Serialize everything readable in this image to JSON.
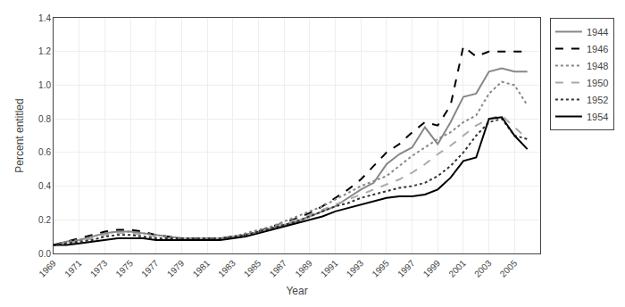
{
  "chart_data": {
    "type": "line",
    "xlabel": "Year",
    "ylabel": "Percent entitled",
    "x": [
      1969,
      1970,
      1971,
      1972,
      1973,
      1974,
      1975,
      1976,
      1977,
      1978,
      1979,
      1980,
      1981,
      1982,
      1983,
      1984,
      1985,
      1986,
      1987,
      1988,
      1989,
      1990,
      1991,
      1992,
      1993,
      1994,
      1995,
      1996,
      1997,
      1998,
      1999,
      2000,
      2001,
      2002,
      2003,
      2004,
      2005,
      2006
    ],
    "series": [
      {
        "name": "1944",
        "color": "#888888",
        "line_style": "solid",
        "values": [
          0.05,
          0.07,
          0.08,
          0.1,
          0.12,
          0.13,
          0.13,
          0.12,
          0.11,
          0.1,
          0.09,
          0.09,
          0.09,
          0.09,
          0.1,
          0.11,
          0.13,
          0.15,
          0.17,
          0.19,
          0.22,
          0.25,
          0.28,
          0.33,
          0.38,
          0.42,
          0.53,
          0.59,
          0.63,
          0.75,
          0.65,
          0.78,
          0.93,
          0.95,
          1.08,
          1.1,
          1.08,
          1.08
        ]
      },
      {
        "name": "1946",
        "color": "#000000",
        "line_style": "dashed",
        "values": [
          0.05,
          0.07,
          0.09,
          0.11,
          0.13,
          0.14,
          0.14,
          0.13,
          0.11,
          0.1,
          0.09,
          0.09,
          0.09,
          0.09,
          0.1,
          0.11,
          0.13,
          0.16,
          0.18,
          0.21,
          0.24,
          0.28,
          0.33,
          0.38,
          0.44,
          0.52,
          0.6,
          0.65,
          0.72,
          0.78,
          0.76,
          0.88,
          1.23,
          1.17,
          1.2,
          1.2,
          1.2,
          1.2
        ]
      },
      {
        "name": "1948",
        "color": "#888888",
        "line_style": "dotted",
        "values": [
          0.05,
          0.07,
          0.08,
          0.1,
          0.12,
          0.13,
          0.13,
          0.12,
          0.11,
          0.1,
          0.09,
          0.09,
          0.09,
          0.09,
          0.1,
          0.12,
          0.14,
          0.16,
          0.19,
          0.22,
          0.25,
          0.28,
          0.32,
          0.36,
          0.4,
          0.43,
          0.46,
          0.52,
          0.58,
          0.63,
          0.68,
          0.72,
          0.78,
          0.82,
          0.95,
          1.02,
          1.0,
          0.88
        ]
      },
      {
        "name": "1950",
        "color": "#aaaaaa",
        "line_style": "dashed",
        "values": [
          0.05,
          0.06,
          0.07,
          0.09,
          0.11,
          0.12,
          0.12,
          0.11,
          0.1,
          0.09,
          0.09,
          0.09,
          0.09,
          0.09,
          0.1,
          0.11,
          0.13,
          0.15,
          0.18,
          0.2,
          0.23,
          0.26,
          0.29,
          0.32,
          0.35,
          0.38,
          0.41,
          0.44,
          0.48,
          0.53,
          0.59,
          0.64,
          0.7,
          0.76,
          0.8,
          0.82,
          0.75,
          0.68
        ]
      },
      {
        "name": "1952",
        "color": "#333333",
        "line_style": "dotted",
        "values": [
          0.05,
          0.06,
          0.07,
          0.08,
          0.1,
          0.11,
          0.11,
          0.1,
          0.09,
          0.09,
          0.09,
          0.09,
          0.09,
          0.09,
          0.1,
          0.11,
          0.13,
          0.15,
          0.17,
          0.19,
          0.22,
          0.25,
          0.28,
          0.3,
          0.33,
          0.35,
          0.37,
          0.39,
          0.4,
          0.42,
          0.46,
          0.52,
          0.6,
          0.7,
          0.78,
          0.8,
          0.7,
          0.68
        ]
      },
      {
        "name": "1954",
        "color": "#000000",
        "line_style": "solid",
        "values": [
          0.05,
          0.05,
          0.06,
          0.07,
          0.08,
          0.09,
          0.09,
          0.09,
          0.08,
          0.08,
          0.08,
          0.08,
          0.08,
          0.08,
          0.09,
          0.1,
          0.12,
          0.14,
          0.16,
          0.18,
          0.2,
          0.22,
          0.25,
          0.27,
          0.29,
          0.31,
          0.33,
          0.34,
          0.34,
          0.35,
          0.38,
          0.45,
          0.55,
          0.57,
          0.8,
          0.81,
          0.7,
          0.62
        ]
      }
    ],
    "xlim": [
      1969,
      2007
    ],
    "xticks": [
      1969,
      1971,
      1973,
      1975,
      1977,
      1979,
      1981,
      1983,
      1985,
      1987,
      1989,
      1991,
      1993,
      1995,
      1997,
      1999,
      2001,
      2003,
      2005
    ],
    "ylim": [
      0.0,
      1.4
    ],
    "yticks": [
      {
        "value": 0.0,
        "label": "0.0"
      },
      0.2,
      0.4,
      0.6,
      0.8,
      {
        "value": 1.0,
        "label": "1.0"
      },
      1.2,
      1.4
    ],
    "grid": true,
    "legend": "right"
  }
}
